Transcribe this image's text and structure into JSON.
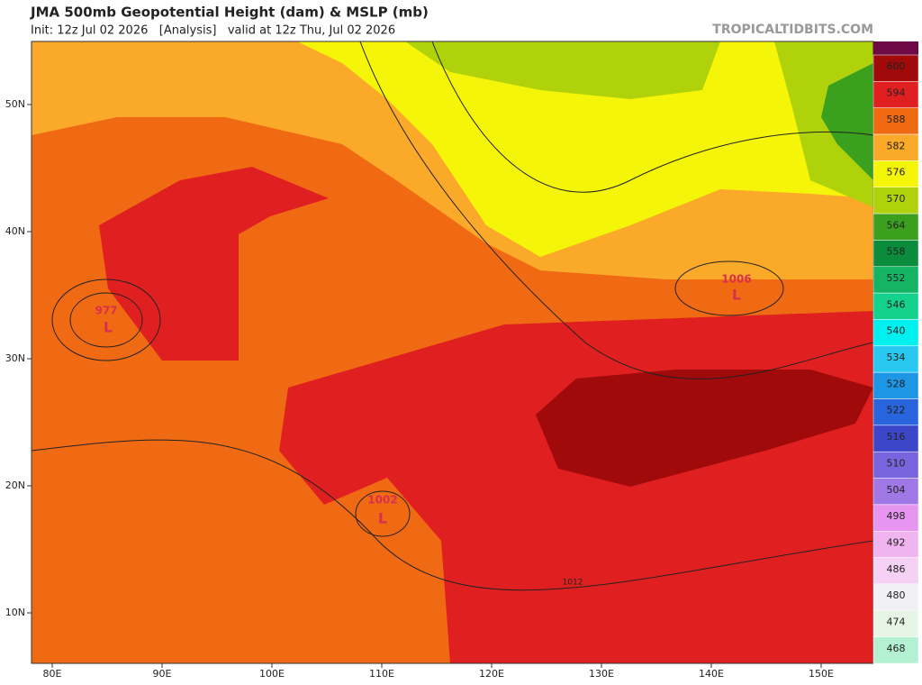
{
  "header": {
    "title": "JMA 500mb Geopotential Height (dam) & MSLP (mb)",
    "subtitle": "Init: 12z Jul 02 2026   [Analysis]   valid at 12z Thu, Jul 02 2026",
    "watermark": "TROPICALTIDBITS.COM"
  },
  "map": {
    "lon_labels": [
      "80E",
      "90E",
      "100E",
      "110E",
      "120E",
      "130E",
      "140E",
      "150E"
    ],
    "lat_labels": [
      "50N",
      "40N",
      "30N",
      "20N",
      "10N"
    ],
    "lows": [
      {
        "pressure": "977",
        "symbol": "L"
      },
      {
        "pressure": "1002",
        "symbol": "L"
      },
      {
        "pressure": "1006",
        "symbol": "L"
      }
    ],
    "isobar_label": "1012"
  },
  "colorbar": [
    {
      "label": "600",
      "color": "#a00a0a"
    },
    {
      "label": "594",
      "color": "#e02020"
    },
    {
      "label": "588",
      "color": "#f06a14"
    },
    {
      "label": "582",
      "color": "#fba928"
    },
    {
      "label": "576",
      "color": "#f5f50a"
    },
    {
      "label": "570",
      "color": "#b0d20a"
    },
    {
      "label": "564",
      "color": "#3aa01e"
    },
    {
      "label": "558",
      "color": "#0a8c3c"
    },
    {
      "label": "552",
      "color": "#14b464"
    },
    {
      "label": "546",
      "color": "#14d28c"
    },
    {
      "label": "540",
      "color": "#00f0f0"
    },
    {
      "label": "534",
      "color": "#28c8f0"
    },
    {
      "label": "528",
      "color": "#1e96e6"
    },
    {
      "label": "522",
      "color": "#2864dc"
    },
    {
      "label": "516",
      "color": "#3c46c8"
    },
    {
      "label": "510",
      "color": "#7864dc"
    },
    {
      "label": "504",
      "color": "#a078e6"
    },
    {
      "label": "498",
      "color": "#e696f0"
    },
    {
      "label": "492",
      "color": "#f0b4f0"
    },
    {
      "label": "486",
      "color": "#f5d2f5"
    },
    {
      "label": "480",
      "color": "#f0f0f5"
    },
    {
      "label": "474",
      "color": "#e6f5e6"
    },
    {
      "label": "468",
      "color": "#b4f0d2"
    }
  ]
}
